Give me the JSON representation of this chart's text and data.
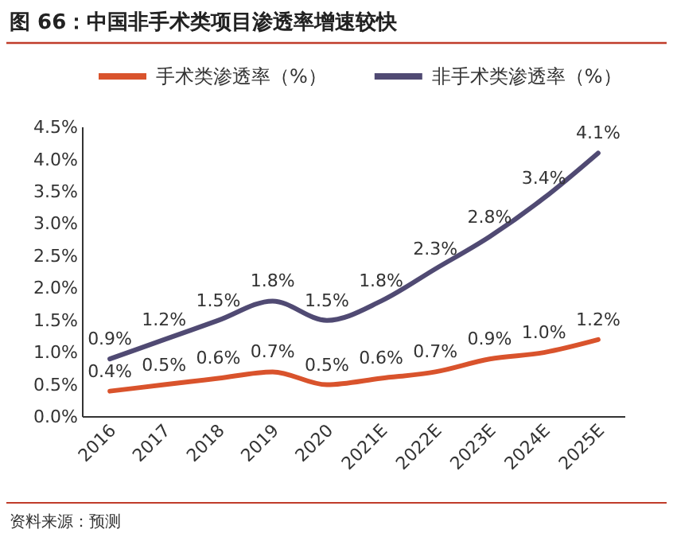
{
  "chart_data": {
    "type": "line",
    "title": "图 66：中国非手术类项目渗透率增速较快",
    "categories": [
      "2016",
      "2017",
      "2018",
      "2019",
      "2020",
      "2021E",
      "2022E",
      "2023E",
      "2024E",
      "2025E"
    ],
    "series": [
      {
        "name": "手术类渗透率（%）",
        "color": "#d9532c",
        "values": [
          0.4,
          0.5,
          0.6,
          0.7,
          0.5,
          0.6,
          0.7,
          0.9,
          1.0,
          1.2
        ],
        "value_labels": [
          "0.4%",
          "0.5%",
          "0.6%",
          "0.7%",
          "0.5%",
          "0.6%",
          "0.7%",
          "0.9%",
          "1.0%",
          "1.2%"
        ]
      },
      {
        "name": "非手术类渗透率（%）",
        "color": "#504a73",
        "values": [
          0.9,
          1.2,
          1.5,
          1.8,
          1.5,
          1.8,
          2.3,
          2.8,
          3.4,
          4.1
        ],
        "value_labels": [
          "0.9%",
          "1.2%",
          "1.5%",
          "1.8%",
          "1.5%",
          "1.8%",
          "2.3%",
          "2.8%",
          "3.4%",
          "4.1%"
        ]
      }
    ],
    "ylim": [
      0,
      4.5
    ],
    "yticks": [
      {
        "value": 0,
        "label": "0.0%"
      },
      {
        "value": 0.5,
        "label": "0.5%"
      },
      {
        "value": 1,
        "label": "1.0%"
      },
      {
        "value": 1.5,
        "label": "1.5%"
      },
      {
        "value": 2,
        "label": "2.0%"
      },
      {
        "value": 2.5,
        "label": "2.5%"
      },
      {
        "value": 3,
        "label": "3.0%"
      },
      {
        "value": 3.5,
        "label": "3.5%"
      },
      {
        "value": 4,
        "label": "4.0%"
      },
      {
        "value": 4.5,
        "label": "4.5%"
      }
    ],
    "legend": "top",
    "grid": false,
    "marker": "none",
    "line_style": "solid",
    "annotations": [
      "资料来源：预测"
    ]
  }
}
